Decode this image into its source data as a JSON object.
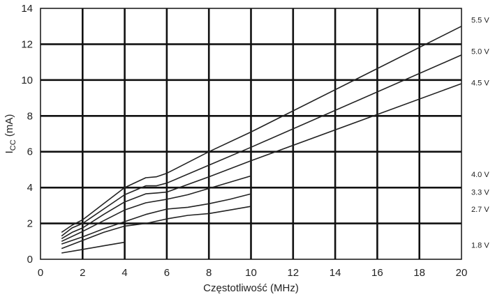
{
  "chart_data": {
    "type": "line",
    "xlabel": "Częstotliwość (MHz)",
    "ylabel": "I",
    "ylabel_sub": "CC",
    "ylabel_unit": " (mA)",
    "xlim": [
      0,
      20
    ],
    "ylim": [
      0,
      14
    ],
    "xticks": [
      0,
      2,
      4,
      6,
      8,
      10,
      12,
      14,
      16,
      18,
      20
    ],
    "yticks": [
      0,
      2,
      4,
      6,
      8,
      10,
      12,
      14
    ],
    "xtick_labels": [
      "0",
      "2",
      "4",
      "6",
      "8",
      "10",
      "12",
      "14",
      "16",
      "18",
      "20"
    ],
    "ytick_labels": [
      "0",
      "2",
      "4",
      "6",
      "8",
      "10",
      "12",
      "14"
    ],
    "grid": true,
    "legend": "right",
    "series": [
      {
        "name": "5.5 V",
        "x": [
          1,
          1.5,
          2,
          3,
          4,
          5,
          5.5,
          6,
          8,
          10,
          20
        ],
        "y": [
          1.5,
          1.9,
          2.2,
          3.1,
          4.0,
          4.55,
          4.6,
          4.8,
          6.0,
          7.1,
          13.0
        ]
      },
      {
        "name": "5.0 V",
        "x": [
          1,
          1.5,
          2,
          3,
          4,
          5,
          5.5,
          6,
          8,
          10,
          20
        ],
        "y": [
          1.3,
          1.75,
          2.0,
          2.8,
          3.6,
          4.1,
          4.1,
          4.25,
          5.25,
          6.25,
          11.4
        ]
      },
      {
        "name": "4.5 V",
        "x": [
          1,
          1.5,
          2,
          3,
          4,
          5,
          5.5,
          6,
          8,
          10,
          20
        ],
        "y": [
          1.15,
          1.5,
          1.75,
          2.5,
          3.2,
          3.65,
          3.7,
          3.75,
          4.6,
          5.5,
          9.8
        ]
      },
      {
        "name": "4.0 V",
        "x": [
          1,
          2,
          3,
          4,
          5,
          6,
          7,
          8,
          9,
          10
        ],
        "y": [
          1.0,
          1.55,
          2.15,
          2.75,
          3.15,
          3.35,
          3.6,
          3.95,
          4.3,
          4.65
        ]
      },
      {
        "name": "3.3 V",
        "x": [
          1,
          2,
          3,
          4,
          5,
          6,
          7,
          8,
          9,
          10
        ],
        "y": [
          0.85,
          1.25,
          1.7,
          2.1,
          2.5,
          2.8,
          2.9,
          3.1,
          3.35,
          3.65
        ]
      },
      {
        "name": "2.7 V",
        "x": [
          1,
          2,
          3,
          4,
          5,
          6,
          7,
          8,
          9,
          10
        ],
        "y": [
          0.6,
          1.05,
          1.5,
          1.85,
          2.0,
          2.25,
          2.45,
          2.55,
          2.75,
          2.95
        ]
      },
      {
        "name": "1.8 V",
        "x": [
          1,
          2,
          3,
          4
        ],
        "y": [
          0.35,
          0.55,
          0.75,
          0.95
        ]
      }
    ],
    "label_values": [
      {
        "name": "5.5 V",
        "y": 13.35
      },
      {
        "name": "5.0 V",
        "y": 11.6
      },
      {
        "name": "4.5 V",
        "y": 9.85
      },
      {
        "name": "4.0 V",
        "y": 4.75
      },
      {
        "name": "3.3 V",
        "y": 3.75
      },
      {
        "name": "2.7 V",
        "y": 2.8
      },
      {
        "name": "1.8 V",
        "y": 0.8
      }
    ],
    "line_color": "#222222",
    "grid_color": "#111111"
  }
}
